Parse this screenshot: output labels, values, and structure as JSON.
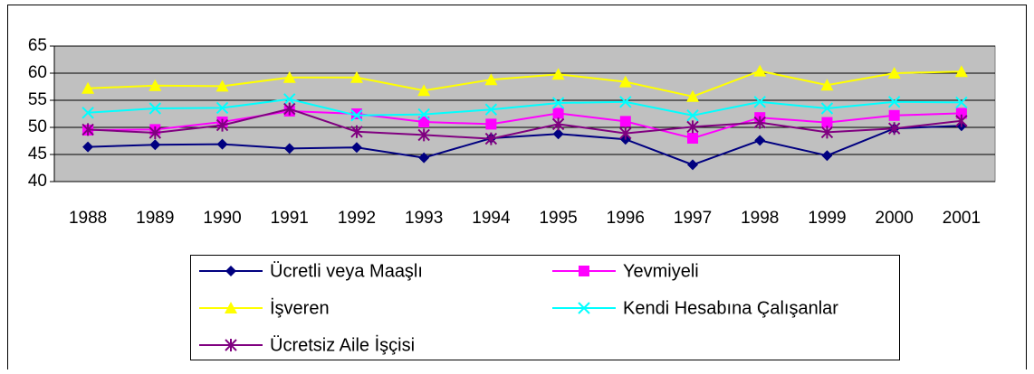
{
  "chart_data": {
    "type": "line",
    "categories": [
      "1988",
      "1989",
      "1990",
      "1991",
      "1992",
      "1993",
      "1994",
      "1995",
      "1996",
      "1997",
      "1998",
      "1999",
      "2000",
      "2001"
    ],
    "series": [
      {
        "name": "Ücretli veya Maaşlı",
        "color": "#000080",
        "marker": "diamond",
        "values": [
          46.4,
          46.8,
          46.9,
          46.1,
          46.3,
          44.4,
          48.0,
          48.8,
          47.8,
          43.1,
          47.6,
          44.8,
          49.8,
          50.3
        ]
      },
      {
        "name": "Yevmiyeli",
        "color": "#ff00ff",
        "marker": "square",
        "values": [
          49.5,
          49.6,
          51.0,
          53.0,
          52.5,
          51.0,
          50.6,
          52.6,
          51.1,
          48.0,
          51.8,
          50.9,
          52.2,
          52.6
        ]
      },
      {
        "name": "İşveren",
        "color": "#ffff00",
        "marker": "triangle",
        "values": [
          57.2,
          57.7,
          57.6,
          59.2,
          59.2,
          56.8,
          58.8,
          59.8,
          58.4,
          55.7,
          60.4,
          57.8,
          60.0,
          60.3
        ]
      },
      {
        "name": "Kendi Hesabına Çalışanlar",
        "color": "#00ffff",
        "marker": "x",
        "values": [
          52.7,
          53.5,
          53.6,
          55.2,
          52.2,
          52.4,
          53.3,
          54.5,
          54.7,
          52.2,
          54.7,
          53.5,
          54.7,
          54.6
        ]
      },
      {
        "name": "Ücretsiz Aile İşçisi",
        "color": "#800080",
        "marker": "star",
        "values": [
          49.6,
          49.0,
          50.4,
          53.4,
          49.2,
          48.6,
          47.9,
          50.6,
          48.9,
          50.1,
          50.9,
          49.1,
          49.8,
          51.2
        ]
      }
    ],
    "ylim": [
      40,
      65
    ],
    "yticks": [
      40,
      45,
      50,
      55,
      60,
      65
    ],
    "grid": true,
    "legend": "bottom"
  }
}
